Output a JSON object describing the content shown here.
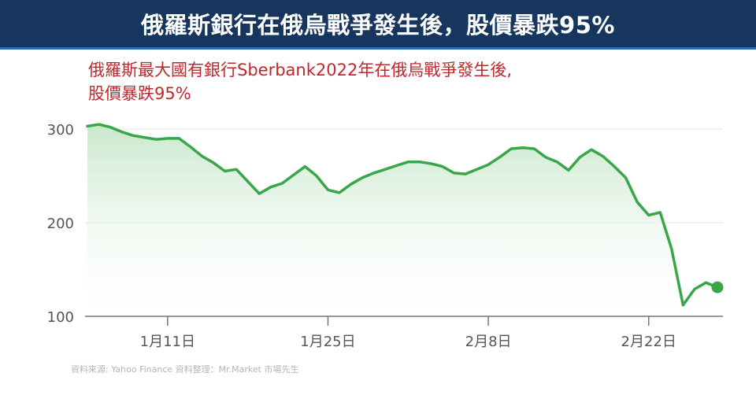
{
  "banner": {
    "title": "俄羅斯銀行在俄烏戰爭發生後，股價暴跌95%"
  },
  "subtitle": {
    "line1": "俄羅斯最大國有銀行Sberbank2022年在俄烏戰爭發生後,",
    "line2": "股價暴跌95%"
  },
  "source": "資料來源:   Yahoo Finance    資料整理：Mr.Market  市場先生",
  "colors": {
    "line": "#3aa64a",
    "area_top": "#c9e8cc",
    "area_bottom": "#ffffff",
    "banner_bg": "#17365d",
    "subtitle": "#c0272d",
    "axis_text": "#555555",
    "grid": "#e4e4e4"
  },
  "chart_data": {
    "type": "area",
    "title": "",
    "xlabel": "",
    "ylabel": "",
    "ylim": [
      100,
      300
    ],
    "yticks": [
      100,
      200,
      300
    ],
    "ytick_labels": [
      "100",
      "200",
      "300"
    ],
    "grid": true,
    "x_tick_labels": [
      {
        "date": "2022-01-11",
        "label": "1月11日"
      },
      {
        "date": "2022-01-25",
        "label": "1月25日"
      },
      {
        "date": "2022-02-08",
        "label": "2月8日"
      },
      {
        "date": "2022-02-22",
        "label": "2月22日"
      }
    ],
    "series": [
      {
        "x": [
          "2022-01-04",
          "2022-01-05",
          "2022-01-06",
          "2022-01-07",
          "2022-01-08",
          "2022-01-09",
          "2022-01-10",
          "2022-01-11",
          "2022-01-12",
          "2022-01-13",
          "2022-01-14",
          "2022-01-15",
          "2022-01-16",
          "2022-01-17",
          "2022-01-18",
          "2022-01-19",
          "2022-01-20",
          "2022-01-21",
          "2022-01-22",
          "2022-01-23",
          "2022-01-24",
          "2022-01-25",
          "2022-01-26",
          "2022-01-27",
          "2022-01-28",
          "2022-01-29",
          "2022-01-30",
          "2022-01-31",
          "2022-02-01",
          "2022-02-02",
          "2022-02-03",
          "2022-02-04",
          "2022-02-05",
          "2022-02-06",
          "2022-02-07",
          "2022-02-08",
          "2022-02-09",
          "2022-02-10",
          "2022-02-11",
          "2022-02-12",
          "2022-02-13",
          "2022-02-14",
          "2022-02-15",
          "2022-02-16",
          "2022-02-17",
          "2022-02-18",
          "2022-02-19",
          "2022-02-20",
          "2022-02-21",
          "2022-02-22",
          "2022-02-23",
          "2022-02-24",
          "2022-02-25",
          "2022-02-26",
          "2022-02-27",
          "2022-02-28"
        ],
        "values": [
          303,
          305,
          302,
          297,
          293,
          291,
          289,
          290,
          290,
          281,
          271,
          264,
          255,
          257,
          244,
          231,
          238,
          242,
          251,
          260,
          250,
          235,
          232,
          241,
          248,
          253,
          257,
          261,
          265,
          265,
          263,
          260,
          253,
          252,
          257,
          262,
          270,
          279,
          280,
          279,
          270,
          265,
          256,
          270,
          278,
          271,
          260,
          248,
          222,
          208,
          211,
          172,
          112,
          129,
          136,
          131
        ],
        "end_marker": true
      }
    ]
  }
}
